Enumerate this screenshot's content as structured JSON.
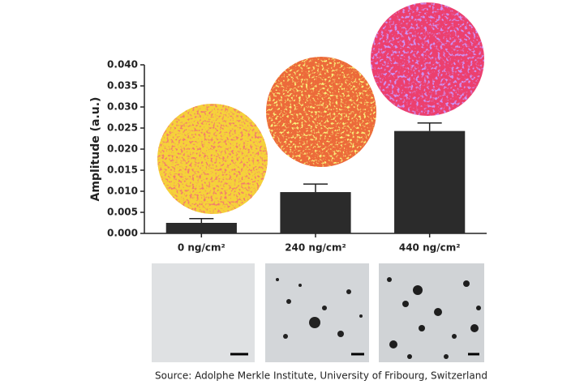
{
  "chart_data": {
    "type": "bar",
    "ylabel": "Amplitude (a.u.)",
    "categories": [
      "0 ng/cm²",
      "240 ng/cm²",
      "440 ng/cm²"
    ],
    "values": [
      0.0025,
      0.0098,
      0.0243
    ],
    "errors": [
      0.001,
      0.0019,
      0.0019
    ],
    "color": "#2b2b2b",
    "ylim": [
      0,
      0.04
    ],
    "yticks": [
      {
        "value": 0,
        "label": "0.000"
      },
      0.005,
      {
        "value": 0.01,
        "label": "0.010"
      },
      0.015,
      {
        "value": 0.02,
        "label": "0.020"
      },
      0.025,
      {
        "value": 0.03,
        "label": "0.030"
      },
      0.035,
      {
        "value": 0.04,
        "label": "0.040"
      }
    ],
    "source": "Source: Adolphe Merkle Institute, University of Fribourg, Switzerland"
  }
}
